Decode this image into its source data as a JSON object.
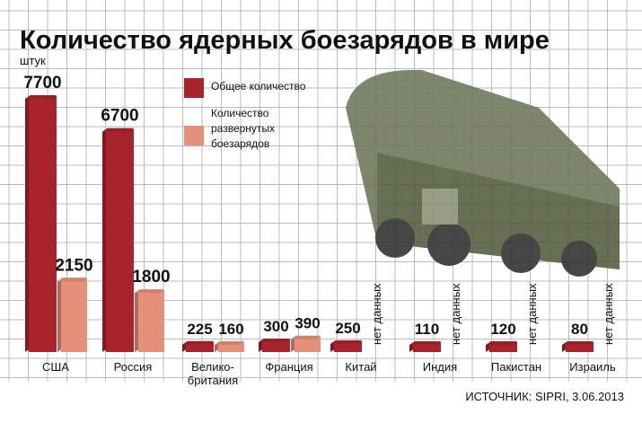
{
  "chart_data": {
    "type": "bar",
    "title": "Количество ядерных боезарядов в мире",
    "subtitle": "штук",
    "source": "ИСТОЧНИК: SIPRI, 3.06.2013",
    "categories": [
      "США",
      "Россия",
      "Велико-\nбритания",
      "Франция",
      "Китай",
      "Индия",
      "Пакистан",
      "Израиль"
    ],
    "series": [
      {
        "name": "Общее количество",
        "color": "#a8232c",
        "values": [
          7700,
          6700,
          225,
          300,
          250,
          110,
          120,
          80
        ]
      },
      {
        "name": "Количество\nразвернутых\nбоезарядов",
        "color": "#e4907a",
        "values": [
          2150,
          1800,
          160,
          390,
          null,
          null,
          null,
          null
        ],
        "value_labels": [
          "2150",
          "1800",
          "160",
          "390",
          "нет данных",
          "нет данных",
          "нет данных",
          "нет данных"
        ]
      }
    ],
    "grid": true
  }
}
